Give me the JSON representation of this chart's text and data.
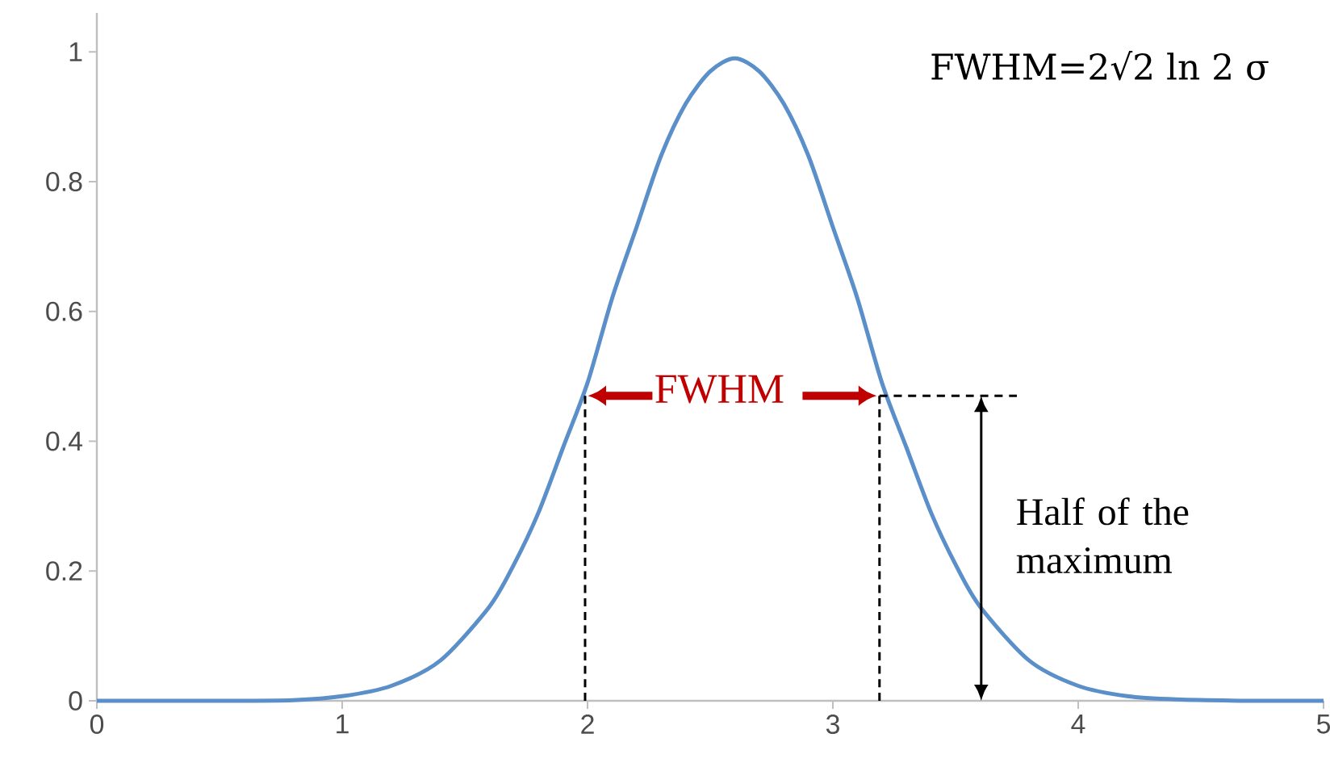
{
  "chart_data": {
    "type": "line",
    "xlim": [
      0,
      5
    ],
    "ylim": [
      0,
      1.06
    ],
    "xticks": [
      0,
      1,
      2,
      3,
      4,
      5
    ],
    "yticks": [
      0,
      0.2,
      0.4,
      0.6,
      0.8,
      1
    ],
    "grid": false,
    "marker": "none",
    "series": [
      {
        "color": "#5b8fc9",
        "line_style": "solid",
        "x": [
          0,
          0.5,
          0.8,
          1.0,
          1.2,
          1.4,
          1.6,
          1.7,
          1.8,
          1.9,
          2.0,
          2.1,
          2.2,
          2.3,
          2.4,
          2.5,
          2.6,
          2.7,
          2.8,
          2.9,
          3.0,
          3.1,
          3.2,
          3.3,
          3.4,
          3.5,
          3.6,
          3.8,
          4.0,
          4.2,
          4.4,
          4.7,
          5.0
        ],
        "values": [
          0,
          0,
          0.001,
          0.007,
          0.023,
          0.062,
          0.145,
          0.21,
          0.29,
          0.39,
          0.49,
          0.62,
          0.73,
          0.84,
          0.92,
          0.97,
          0.99,
          0.97,
          0.92,
          0.84,
          0.73,
          0.62,
          0.49,
          0.39,
          0.29,
          0.21,
          0.145,
          0.062,
          0.023,
          0.007,
          0.002,
          0,
          0
        ]
      },
      {
        "type": "line",
        "color": "#000000",
        "line_style": "dashed",
        "x": [
          1.99,
          1.99
        ],
        "values": [
          0,
          0.47
        ]
      },
      {
        "type": "line",
        "color": "#000000",
        "line_style": "dashed",
        "x": [
          3.19,
          3.19
        ],
        "values": [
          0,
          0.47
        ]
      },
      {
        "type": "line",
        "color": "#000000",
        "line_style": "dashed",
        "x": [
          3.19,
          3.75
        ],
        "values": [
          0.47,
          0.47
        ]
      }
    ],
    "annotations": [
      "FWHM=2√2 ln 2 σ",
      "FWHM",
      "Half of the maximum"
    ]
  }
}
